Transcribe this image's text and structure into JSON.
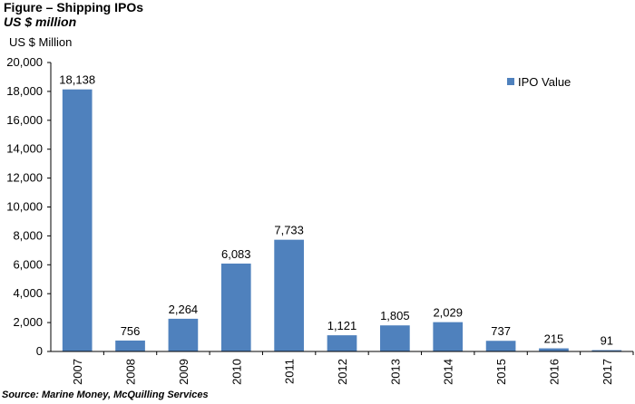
{
  "figure": {
    "title": "Figure – Shipping IPOs",
    "subtitle": "US $ million",
    "source": "Source: Marine Money, McQuilling Services"
  },
  "chart_data": {
    "type": "bar",
    "ylabel": "US $ Million",
    "categories": [
      "2007",
      "2008",
      "2009",
      "2010",
      "2011",
      "2012",
      "2013",
      "2014",
      "2015",
      "2016",
      "2017"
    ],
    "series": [
      {
        "name": "IPO Value",
        "color": "#4f81bd",
        "values": [
          18138,
          756,
          2264,
          6083,
          7733,
          1121,
          1805,
          2029,
          737,
          215,
          91
        ],
        "labels": [
          "18,138",
          "756",
          "2,264",
          "6,083",
          "7,733",
          "1,121",
          "1,805",
          "2,029",
          "737",
          "215",
          "91"
        ]
      }
    ],
    "ylim": [
      0,
      20000
    ],
    "yticks": [
      0,
      2000,
      4000,
      6000,
      8000,
      10000,
      12000,
      14000,
      16000,
      18000,
      20000
    ],
    "ytick_labels": [
      "0",
      "2,000",
      "4,000",
      "6,000",
      "8,000",
      "10,000",
      "12,000",
      "14,000",
      "16,000",
      "18,000",
      "20,000"
    ],
    "legend_position": "top-right",
    "grid": false
  }
}
